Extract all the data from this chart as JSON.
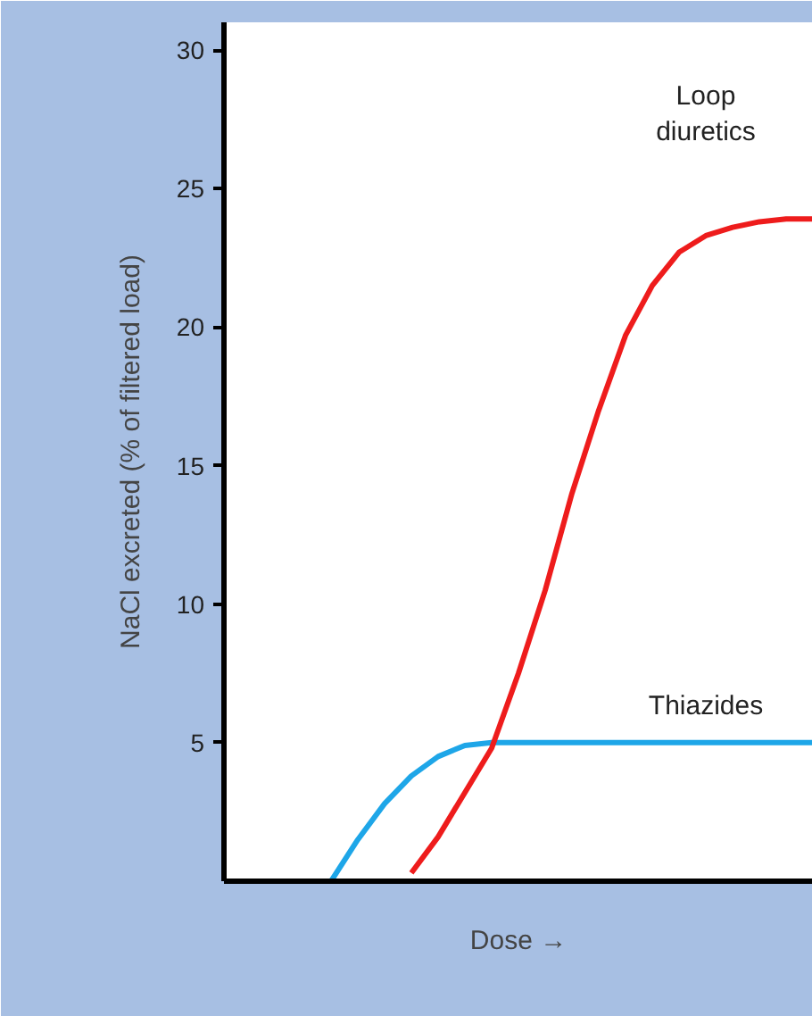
{
  "chart_data": {
    "type": "line",
    "xlabel": "Dose →",
    "ylabel": "NaCl excreted (% of filtered load)",
    "categories": [
      null,
      null,
      null,
      null,
      null,
      null,
      null,
      null,
      null,
      null,
      null,
      null,
      null,
      null,
      null,
      null,
      null,
      null,
      null,
      null,
      null,
      null,
      null
    ],
    "ylim": [
      0,
      31
    ],
    "yticks": [
      5,
      10,
      15,
      20,
      25,
      30
    ],
    "tick_labels": "y",
    "grid": false,
    "series": [
      {
        "name": "Thiazides",
        "color": "#1ea6e8",
        "values": [
          null,
          null,
          null,
          null,
          0,
          1.5,
          2.8,
          3.8,
          4.5,
          4.9,
          5,
          5,
          5,
          5,
          5,
          5,
          5,
          5,
          5,
          5,
          5,
          5,
          5
        ]
      },
      {
        "name": "Loop diuretics",
        "color": "#ee1c1c",
        "values": [
          null,
          null,
          null,
          null,
          null,
          null,
          null,
          0.3,
          1.6,
          3.2,
          4.8,
          7.5,
          10.5,
          14,
          17,
          19.7,
          21.5,
          22.7,
          23.3,
          23.6,
          23.8,
          23.9,
          23.9
        ]
      }
    ]
  }
}
